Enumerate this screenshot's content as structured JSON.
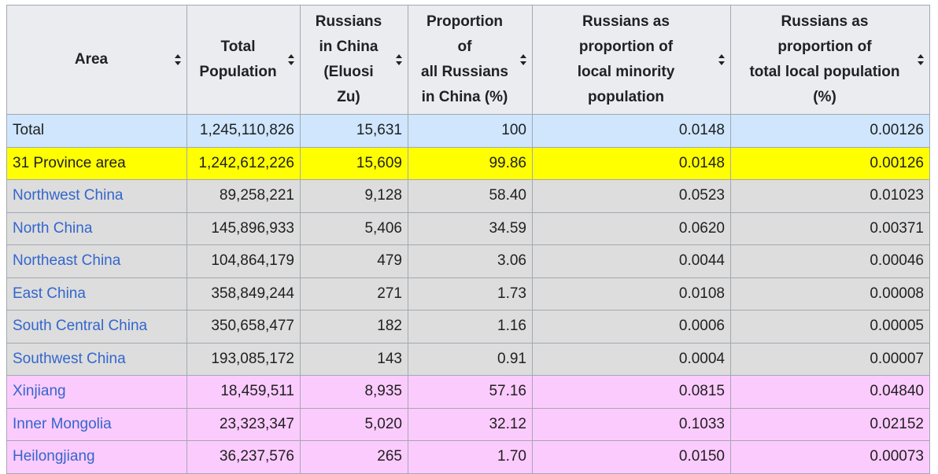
{
  "table": {
    "headers": [
      {
        "label": "Area",
        "lines": [
          "Area"
        ]
      },
      {
        "label": "Total Population",
        "lines": [
          "Total",
          "Population"
        ]
      },
      {
        "label": "Russians in China (Eluosi Zu)",
        "lines": [
          "Russians",
          "in China",
          "(Eluosi",
          "Zu)"
        ]
      },
      {
        "label": "Proportion of all Russians in China (%)",
        "lines": [
          "Proportion",
          "of",
          "all Russians",
          "in China (%)"
        ]
      },
      {
        "label": "Russians as proportion of local minority population",
        "lines": [
          "Russians as",
          "proportion of",
          "local minority",
          "population"
        ]
      },
      {
        "label": "Russians as proportion of total local population (%)",
        "lines": [
          "Russians as",
          "proportion of",
          "total local population",
          "(%)"
        ]
      }
    ],
    "rows": [
      {
        "area": "Total",
        "link": false,
        "style": "total",
        "total_population": "1,245,110,826",
        "russians": "15,631",
        "proportion_all": "100",
        "prop_minority": "0.0148",
        "prop_total": "0.00126"
      },
      {
        "area": "31 Province area",
        "link": false,
        "style": "province",
        "total_population": "1,242,612,226",
        "russians": "15,609",
        "proportion_all": "99.86",
        "prop_minority": "0.0148",
        "prop_total": "0.00126"
      },
      {
        "area": "Northwest China",
        "link": true,
        "style": "region",
        "total_population": "89,258,221",
        "russians": "9,128",
        "proportion_all": "58.40",
        "prop_minority": "0.0523",
        "prop_total": "0.01023"
      },
      {
        "area": "North China",
        "link": true,
        "style": "region",
        "total_population": "145,896,933",
        "russians": "5,406",
        "proportion_all": "34.59",
        "prop_minority": "0.0620",
        "prop_total": "0.00371"
      },
      {
        "area": "Northeast China",
        "link": true,
        "style": "region",
        "total_population": "104,864,179",
        "russians": "479",
        "proportion_all": "3.06",
        "prop_minority": "0.0044",
        "prop_total": "0.00046"
      },
      {
        "area": "East China",
        "link": true,
        "style": "region",
        "total_population": "358,849,244",
        "russians": "271",
        "proportion_all": "1.73",
        "prop_minority": "0.0108",
        "prop_total": "0.00008"
      },
      {
        "area": "South Central China",
        "link": true,
        "style": "region",
        "total_population": "350,658,477",
        "russians": "182",
        "proportion_all": "1.16",
        "prop_minority": "0.0006",
        "prop_total": "0.00005"
      },
      {
        "area": "Southwest China",
        "link": true,
        "style": "region",
        "total_population": "193,085,172",
        "russians": "143",
        "proportion_all": "0.91",
        "prop_minority": "0.0004",
        "prop_total": "0.00007"
      },
      {
        "area": "Xinjiang",
        "link": true,
        "style": "pink",
        "total_population": "18,459,511",
        "russians": "8,935",
        "proportion_all": "57.16",
        "prop_minority": "0.0815",
        "prop_total": "0.04840"
      },
      {
        "area": "Inner Mongolia",
        "link": true,
        "style": "pink",
        "total_population": "23,323,347",
        "russians": "5,020",
        "proportion_all": "32.12",
        "prop_minority": "0.1033",
        "prop_total": "0.02152"
      },
      {
        "area": "Heilongjiang",
        "link": true,
        "style": "pink",
        "total_population": "36,237,576",
        "russians": "265",
        "proportion_all": "1.70",
        "prop_minority": "0.0150",
        "prop_total": "0.00073"
      }
    ]
  },
  "colors": {
    "header_bg": "#eaecf0",
    "border": "#a2a9b1",
    "total_row": "#cfe6fd",
    "province_row": "#ffff00",
    "region_row": "#dddddd",
    "province_level_row": "#fccbfd",
    "link": "#3366cc"
  },
  "icons": {
    "sort": "sort-both-arrows-icon"
  }
}
